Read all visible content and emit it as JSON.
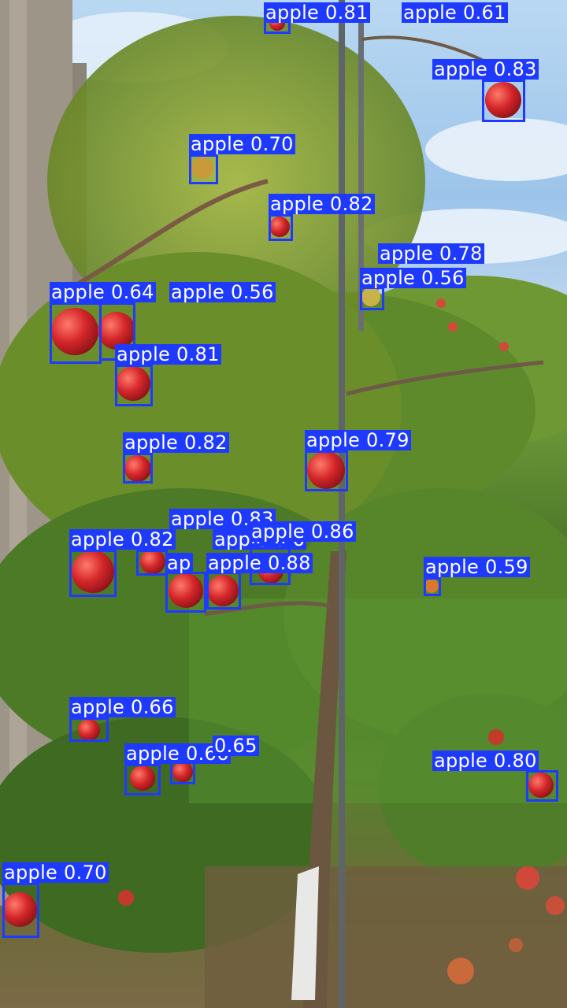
{
  "image": {
    "content": "apple orchard with trees bearing red apples against a blue sky",
    "colors": {
      "box": "#1f3aff",
      "label_text": "#ffffff",
      "sky": "#a8cdee",
      "foliage": "#4f7f2a",
      "apple": "#d4262a"
    }
  },
  "detections": [
    {
      "label": "apple",
      "score": "0.81"
    },
    {
      "label": "apple",
      "score": "0.61"
    },
    {
      "label": "apple",
      "score": "0.83"
    },
    {
      "label": "apple",
      "score": "0.70"
    },
    {
      "label": "apple",
      "score": "0.82"
    },
    {
      "label": "apple",
      "score": "0.78"
    },
    {
      "label": "apple",
      "score": "0.56"
    },
    {
      "label": "apple",
      "score": "0.64"
    },
    {
      "label": "apple",
      "score": "0.56"
    },
    {
      "label": "apple",
      "score": "0.81"
    },
    {
      "label": "apple",
      "score": "0.82"
    },
    {
      "label": "apple",
      "score": "0.79"
    },
    {
      "label": "apple",
      "score": "0.83"
    },
    {
      "label": "apple",
      "score": "0.82"
    },
    {
      "label": "apple",
      "score": "0.6"
    },
    {
      "label": "apple",
      "score": "0.86"
    },
    {
      "label": "ap",
      "score": ""
    },
    {
      "label": "apple",
      "score": "0.88"
    },
    {
      "label": "apple",
      "score": "0.59"
    },
    {
      "label": "apple",
      "score": "0.66"
    },
    {
      "label": "apple",
      "score": "0.66"
    },
    {
      "label": "",
      "score": "0.65"
    },
    {
      "label": "apple",
      "score": "0.80"
    },
    {
      "label": "apple",
      "score": "0.70"
    }
  ]
}
